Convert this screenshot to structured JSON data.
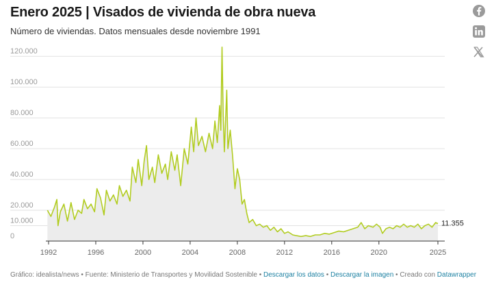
{
  "header": {
    "title": "Enero 2025 | Visados de vivienda de obra nueva",
    "subtitle": "Número de viviendas. Datos mensuales desde noviembre 1991"
  },
  "share": {
    "icons": [
      "facebook-icon",
      "linkedin-icon",
      "x-icon"
    ]
  },
  "footer": {
    "grafico": "Gráfico: idealista/news",
    "sep1": " • ",
    "fuente": "Fuente: Ministerio de Transportes y Movilidad Sostenible",
    "sep2": " • ",
    "descargar_datos": "Descargar los datos",
    "sep3": " • ",
    "descargar_imagen": "Descargar la imagen",
    "sep4": " • ",
    "creado": "Creado con ",
    "datawrapper": "Datawrapper"
  },
  "colors": {
    "line": "#b1cc1f",
    "area": "#ececec",
    "grid": "#e2e2e2",
    "axis": "#333333",
    "link": "#1d81a2"
  },
  "chart_data": {
    "type": "area",
    "title": "Enero 2025 | Visados de vivienda de obra nueva",
    "subtitle": "Número de viviendas. Datos mensuales desde noviembre 1991",
    "x_start": "1991-11",
    "x_end": "2025-01",
    "xlim": [
      1991.8,
      2025.1
    ],
    "ylim": [
      0,
      125000
    ],
    "x_ticks": [
      1992,
      1996,
      2000,
      2004,
      2008,
      2012,
      2016,
      2020,
      2025
    ],
    "y_ticks": [
      0,
      10000,
      20000,
      40000,
      60000,
      80000,
      100000,
      120000
    ],
    "y_tick_labels": [
      "0",
      "10.000",
      "20.000",
      "40.000",
      "60.000",
      "80.000",
      "100.000",
      "120.000"
    ],
    "grid": true,
    "last_value_label": "11.355",
    "series": [
      {
        "values": [
          {
            "x": 1991.9,
            "y": 20000
          },
          {
            "x": 1992.2,
            "y": 16000
          },
          {
            "x": 1992.5,
            "y": 22000
          },
          {
            "x": 1992.7,
            "y": 27000
          },
          {
            "x": 1992.8,
            "y": 10000
          },
          {
            "x": 1993.0,
            "y": 19000
          },
          {
            "x": 1993.3,
            "y": 24000
          },
          {
            "x": 1993.6,
            "y": 13000
          },
          {
            "x": 1993.9,
            "y": 25000
          },
          {
            "x": 1994.2,
            "y": 14000
          },
          {
            "x": 1994.5,
            "y": 20000
          },
          {
            "x": 1994.8,
            "y": 18000
          },
          {
            "x": 1995.0,
            "y": 27000
          },
          {
            "x": 1995.3,
            "y": 21000
          },
          {
            "x": 1995.6,
            "y": 24000
          },
          {
            "x": 1995.9,
            "y": 19000
          },
          {
            "x": 1996.1,
            "y": 34000
          },
          {
            "x": 1996.4,
            "y": 28000
          },
          {
            "x": 1996.7,
            "y": 17000
          },
          {
            "x": 1996.9,
            "y": 33000
          },
          {
            "x": 1997.2,
            "y": 26000
          },
          {
            "x": 1997.5,
            "y": 30000
          },
          {
            "x": 1997.8,
            "y": 24000
          },
          {
            "x": 1998.0,
            "y": 36000
          },
          {
            "x": 1998.3,
            "y": 29000
          },
          {
            "x": 1998.6,
            "y": 33000
          },
          {
            "x": 1998.9,
            "y": 26000
          },
          {
            "x": 1999.1,
            "y": 48000
          },
          {
            "x": 1999.4,
            "y": 38000
          },
          {
            "x": 1999.6,
            "y": 53000
          },
          {
            "x": 1999.9,
            "y": 36000
          },
          {
            "x": 2000.1,
            "y": 52000
          },
          {
            "x": 2000.3,
            "y": 62000
          },
          {
            "x": 2000.5,
            "y": 40000
          },
          {
            "x": 2000.8,
            "y": 48000
          },
          {
            "x": 2001.0,
            "y": 38000
          },
          {
            "x": 2001.3,
            "y": 56000
          },
          {
            "x": 2001.6,
            "y": 44000
          },
          {
            "x": 2001.9,
            "y": 50000
          },
          {
            "x": 2002.1,
            "y": 40000
          },
          {
            "x": 2002.4,
            "y": 58000
          },
          {
            "x": 2002.7,
            "y": 46000
          },
          {
            "x": 2002.9,
            "y": 56000
          },
          {
            "x": 2003.2,
            "y": 36000
          },
          {
            "x": 2003.5,
            "y": 60000
          },
          {
            "x": 2003.8,
            "y": 50000
          },
          {
            "x": 2004.1,
            "y": 74000
          },
          {
            "x": 2004.3,
            "y": 58000
          },
          {
            "x": 2004.5,
            "y": 80000
          },
          {
            "x": 2004.7,
            "y": 62000
          },
          {
            "x": 2005.0,
            "y": 68000
          },
          {
            "x": 2005.3,
            "y": 58000
          },
          {
            "x": 2005.6,
            "y": 70000
          },
          {
            "x": 2005.9,
            "y": 60000
          },
          {
            "x": 2006.1,
            "y": 78000
          },
          {
            "x": 2006.3,
            "y": 64000
          },
          {
            "x": 2006.5,
            "y": 88000
          },
          {
            "x": 2006.6,
            "y": 72000
          },
          {
            "x": 2006.7,
            "y": 126000
          },
          {
            "x": 2006.8,
            "y": 82000
          },
          {
            "x": 2006.9,
            "y": 58000
          },
          {
            "x": 2007.1,
            "y": 98000
          },
          {
            "x": 2007.2,
            "y": 60000
          },
          {
            "x": 2007.4,
            "y": 72000
          },
          {
            "x": 2007.6,
            "y": 55000
          },
          {
            "x": 2007.8,
            "y": 34000
          },
          {
            "x": 2008.0,
            "y": 47000
          },
          {
            "x": 2008.2,
            "y": 40000
          },
          {
            "x": 2008.4,
            "y": 24000
          },
          {
            "x": 2008.6,
            "y": 27000
          },
          {
            "x": 2008.8,
            "y": 18000
          },
          {
            "x": 2009.0,
            "y": 12000
          },
          {
            "x": 2009.3,
            "y": 14000
          },
          {
            "x": 2009.6,
            "y": 10000
          },
          {
            "x": 2009.9,
            "y": 11000
          },
          {
            "x": 2010.2,
            "y": 9000
          },
          {
            "x": 2010.5,
            "y": 10000
          },
          {
            "x": 2010.8,
            "y": 7000
          },
          {
            "x": 2011.1,
            "y": 9000
          },
          {
            "x": 2011.4,
            "y": 6000
          },
          {
            "x": 2011.7,
            "y": 8000
          },
          {
            "x": 2012.0,
            "y": 5000
          },
          {
            "x": 2012.3,
            "y": 6000
          },
          {
            "x": 2012.7,
            "y": 4000
          },
          {
            "x": 2013.0,
            "y": 3500
          },
          {
            "x": 2013.4,
            "y": 3000
          },
          {
            "x": 2013.8,
            "y": 3500
          },
          {
            "x": 2014.2,
            "y": 3000
          },
          {
            "x": 2014.6,
            "y": 4000
          },
          {
            "x": 2015.0,
            "y": 4000
          },
          {
            "x": 2015.4,
            "y": 5000
          },
          {
            "x": 2015.8,
            "y": 4500
          },
          {
            "x": 2016.2,
            "y": 5500
          },
          {
            "x": 2016.6,
            "y": 6500
          },
          {
            "x": 2017.0,
            "y": 6000
          },
          {
            "x": 2017.4,
            "y": 7000
          },
          {
            "x": 2017.8,
            "y": 8000
          },
          {
            "x": 2018.2,
            "y": 9000
          },
          {
            "x": 2018.5,
            "y": 12000
          },
          {
            "x": 2018.8,
            "y": 8000
          },
          {
            "x": 2019.1,
            "y": 10000
          },
          {
            "x": 2019.5,
            "y": 9000
          },
          {
            "x": 2019.8,
            "y": 11000
          },
          {
            "x": 2020.1,
            "y": 9000
          },
          {
            "x": 2020.3,
            "y": 5000
          },
          {
            "x": 2020.6,
            "y": 8000
          },
          {
            "x": 2020.9,
            "y": 9000
          },
          {
            "x": 2021.2,
            "y": 8000
          },
          {
            "x": 2021.5,
            "y": 10000
          },
          {
            "x": 2021.8,
            "y": 9000
          },
          {
            "x": 2022.1,
            "y": 11000
          },
          {
            "x": 2022.4,
            "y": 9000
          },
          {
            "x": 2022.7,
            "y": 10000
          },
          {
            "x": 2023.0,
            "y": 9000
          },
          {
            "x": 2023.3,
            "y": 11000
          },
          {
            "x": 2023.6,
            "y": 8000
          },
          {
            "x": 2023.9,
            "y": 10000
          },
          {
            "x": 2024.2,
            "y": 11000
          },
          {
            "x": 2024.5,
            "y": 9000
          },
          {
            "x": 2024.8,
            "y": 12000
          },
          {
            "x": 2025.0,
            "y": 11355
          }
        ]
      }
    ]
  }
}
